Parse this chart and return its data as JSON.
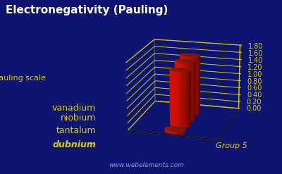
{
  "title": "Electronegativity (Pauling)",
  "ylabel": "Pauling scale",
  "xlabel": "Group 5",
  "watermark": "www.webelements.com",
  "elements": [
    "vanadium",
    "niobium",
    "tantalum",
    "dubnium"
  ],
  "values": [
    1.63,
    1.6,
    1.5,
    0.0
  ],
  "bar_color_face": "#dd1100",
  "bar_color_top": "#ff4422",
  "bar_color_bottom": "#880000",
  "background_color": "#0d1570",
  "grid_color": "#ddcc00",
  "text_color": "#ddcc00",
  "title_color": "#ffffff",
  "yticks": [
    0.0,
    0.2,
    0.4,
    0.6,
    0.8,
    1.0,
    1.2,
    1.4,
    1.6,
    1.8
  ],
  "title_fontsize": 11,
  "label_fontsize": 8,
  "tick_fontsize": 7,
  "elem_fontsize": 9
}
